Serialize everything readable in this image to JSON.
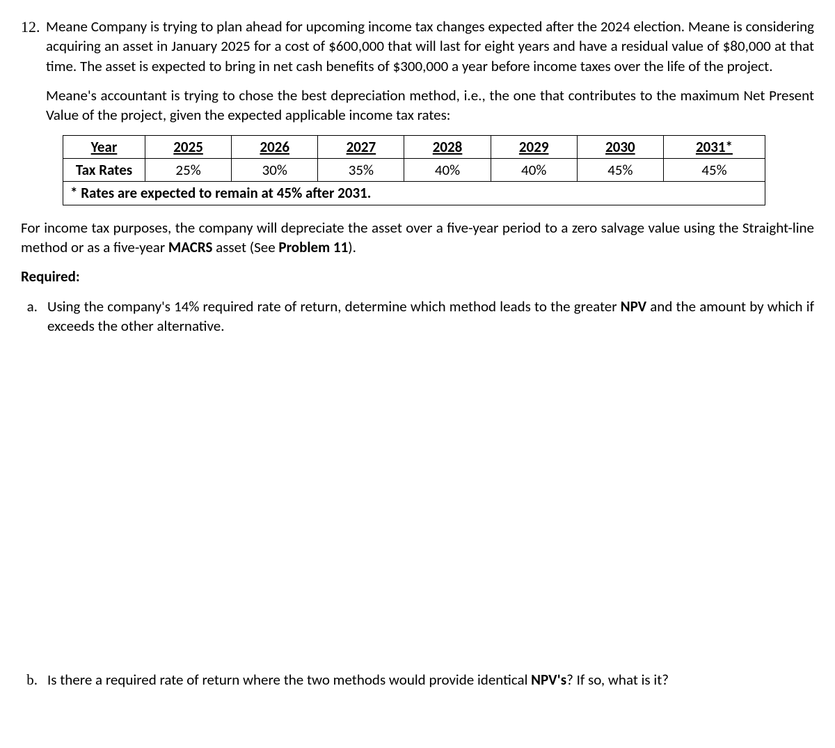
{
  "problem": {
    "number": "12.",
    "para1": "Meane Company is trying to plan ahead for upcoming income tax changes expected after the 2024 election.  Meane is considering acquiring an asset in January 2025 for a cost of $600,000 that will last for eight years and have a residual value of $80,000 at that time.  The asset is expected to bring in net cash benefits of $300,000 a year before income taxes over the life of the project.",
    "para2": "Meane's accountant is trying to chose the best depreciation method, i.e., the one that contributes to the maximum Net Present Value of the project, given the expected applicable income tax rates:"
  },
  "tax_table": {
    "row_labels": {
      "year": "Year",
      "rates": "Tax Rates"
    },
    "years": [
      "2025",
      "2026",
      "2027",
      "2028",
      "2029",
      "2030",
      "2031*"
    ],
    "rates": [
      "25%",
      "30%",
      "35%",
      "40%",
      "40%",
      "45%",
      "45%"
    ],
    "footnote": "* Rates are expected to remain at 45% after 2031.",
    "border_color": "#000000",
    "background_color": "#ffffff",
    "font_size_pt": 16,
    "col_count": 8
  },
  "below": {
    "text_parts": {
      "p1": "For income tax purposes, the company will depreciate the asset over a five-year period to a zero salvage value using the Straight-line method or as a five-year ",
      "b1": "MACRS",
      "p2": "  asset (See ",
      "b2": "Problem 11",
      "p3": ")."
    }
  },
  "required_label": "Required:",
  "reqs": {
    "a": {
      "marker": "a.",
      "t1": "Using the company's 14% required rate of return, determine which method leads to the greater ",
      "b1": "NPV",
      "t2": " and the amount by which if exceeds the other alternative."
    },
    "b": {
      "marker": "b.",
      "t1": "Is there a required rate of return where the two methods would provide identical ",
      "b1": "NPV's",
      "t2": "? If so, what is it?"
    }
  }
}
